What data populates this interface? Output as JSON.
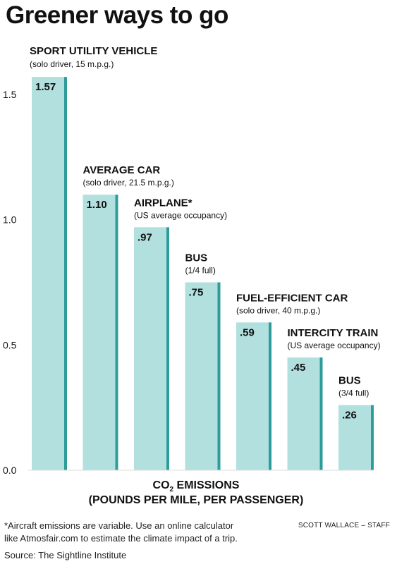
{
  "title": "Greener ways to go",
  "chart_data": {
    "type": "bar",
    "categories": [
      "SPORT UTILITY VEHICLE",
      "AVERAGE CAR",
      "AIRPLANE*",
      "BUS",
      "FUEL-EFFICIENT CAR",
      "INTERCITY TRAIN",
      "BUS"
    ],
    "subtitles": [
      "(solo driver, 15 m.p.g.)",
      "(solo driver, 21.5 m.p.g.)",
      "(US average occupancy)",
      "(1/4 full)",
      "(solo driver, 40 m.p.g.)",
      "(US average occupancy)",
      "(3/4 full)"
    ],
    "values": [
      1.57,
      1.1,
      0.97,
      0.75,
      0.59,
      0.45,
      0.26
    ],
    "value_labels": [
      "1.57",
      "1.10",
      ".97",
      ".75",
      ".59",
      ".45",
      ".26"
    ],
    "y_ticks": [
      0,
      0.5,
      1.0,
      1.5
    ],
    "y_tick_labels": [
      "0.0",
      "0.5",
      "1.0",
      "1.5"
    ],
    "ylim": [
      0,
      1.57
    ],
    "xlabel_line1_main": "CO",
    "xlabel_line1_sub": "2",
    "xlabel_line1_rest": " EMISSIONS",
    "xlabel_line2": "(POUNDS PER MILE, PER PASSENGER)",
    "grid": false,
    "colors": {
      "bar": "#b2e0df",
      "bar_shadow": "#2e9c9a",
      "text": "#111111"
    }
  },
  "footnote_line1": "*Aircraft emissions are variable. Use an online calculator",
  "footnote_line2": "like Atmosfair.com to estimate the climate impact of a trip.",
  "credit": "SCOTT WALLACE – STAFF",
  "source": "Source: The Sightline Institute"
}
